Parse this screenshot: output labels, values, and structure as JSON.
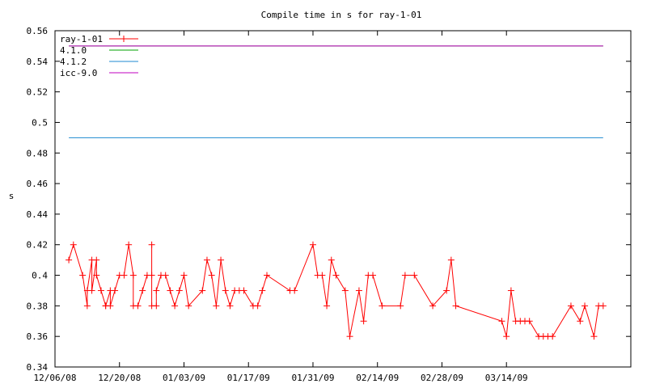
{
  "chart_data": {
    "type": "line",
    "title": "Compile time in s for ray-1-01",
    "xlabel": "",
    "ylabel": "s",
    "ylim": [
      0.34,
      0.56
    ],
    "xlim": [
      "2008-12-06",
      "2009-04-10"
    ],
    "yticks": [
      "0.34",
      "0.36",
      "0.38",
      "0.4",
      "0.42",
      "0.44",
      "0.46",
      "0.48",
      "0.5",
      "0.52",
      "0.54",
      "0.56"
    ],
    "xticks": [
      {
        "date": "2008-12-06",
        "label": "12/06/08"
      },
      {
        "date": "2008-12-20",
        "label": "12/20/08"
      },
      {
        "date": "2009-01-03",
        "label": "01/03/09"
      },
      {
        "date": "2009-01-17",
        "label": "01/17/09"
      },
      {
        "date": "2009-01-31",
        "label": "01/31/09"
      },
      {
        "date": "2009-02-14",
        "label": "02/14/09"
      },
      {
        "date": "2009-02-28",
        "label": "02/28/09"
      },
      {
        "date": "2009-03-14",
        "label": "03/14/09"
      }
    ],
    "grid": false,
    "legend_position": "top-left",
    "series": [
      {
        "name": "ray-1-01",
        "color": "#ff0000",
        "markers": true,
        "points": [
          [
            "2008-12-09",
            0.41
          ],
          [
            "2008-12-10",
            0.42
          ],
          [
            "2008-12-12",
            0.4
          ],
          [
            "2008-12-13",
            0.38
          ],
          [
            "2008-12-13",
            0.39
          ],
          [
            "2008-12-14",
            0.41
          ],
          [
            "2008-12-14",
            0.39
          ],
          [
            "2008-12-15",
            0.41
          ],
          [
            "2008-12-15",
            0.4
          ],
          [
            "2008-12-16",
            0.39
          ],
          [
            "2008-12-17",
            0.38
          ],
          [
            "2008-12-17",
            0.38
          ],
          [
            "2008-12-18",
            0.39
          ],
          [
            "2008-12-18",
            0.38
          ],
          [
            "2008-12-19",
            0.39
          ],
          [
            "2008-12-20",
            0.4
          ],
          [
            "2008-12-21",
            0.4
          ],
          [
            "2008-12-22",
            0.42
          ],
          [
            "2008-12-23",
            0.4
          ],
          [
            "2008-12-23",
            0.38
          ],
          [
            "2008-12-24",
            0.38
          ],
          [
            "2008-12-25",
            0.39
          ],
          [
            "2008-12-26",
            0.4
          ],
          [
            "2008-12-27",
            0.4
          ],
          [
            "2008-12-27",
            0.42
          ],
          [
            "2008-12-27",
            0.38
          ],
          [
            "2008-12-28",
            0.38
          ],
          [
            "2008-12-28",
            0.39
          ],
          [
            "2008-12-29",
            0.4
          ],
          [
            "2008-12-30",
            0.4
          ],
          [
            "2008-12-31",
            0.39
          ],
          [
            "2009-01-01",
            0.38
          ],
          [
            "2009-01-02",
            0.39
          ],
          [
            "2009-01-03",
            0.4
          ],
          [
            "2009-01-04",
            0.38
          ],
          [
            "2009-01-07",
            0.39
          ],
          [
            "2009-01-08",
            0.41
          ],
          [
            "2009-01-09",
            0.4
          ],
          [
            "2009-01-10",
            0.38
          ],
          [
            "2009-01-11",
            0.41
          ],
          [
            "2009-01-12",
            0.39
          ],
          [
            "2009-01-13",
            0.38
          ],
          [
            "2009-01-14",
            0.39
          ],
          [
            "2009-01-15",
            0.39
          ],
          [
            "2009-01-16",
            0.39
          ],
          [
            "2009-01-18",
            0.38
          ],
          [
            "2009-01-19",
            0.38
          ],
          [
            "2009-01-20",
            0.39
          ],
          [
            "2009-01-21",
            0.4
          ],
          [
            "2009-01-26",
            0.39
          ],
          [
            "2009-01-27",
            0.39
          ],
          [
            "2009-01-31",
            0.42
          ],
          [
            "2009-02-01",
            0.4
          ],
          [
            "2009-02-02",
            0.4
          ],
          [
            "2009-02-03",
            0.38
          ],
          [
            "2009-02-04",
            0.41
          ],
          [
            "2009-02-05",
            0.4
          ],
          [
            "2009-02-07",
            0.39
          ],
          [
            "2009-02-08",
            0.36
          ],
          [
            "2009-02-10",
            0.39
          ],
          [
            "2009-02-11",
            0.37
          ],
          [
            "2009-02-12",
            0.4
          ],
          [
            "2009-02-13",
            0.4
          ],
          [
            "2009-02-15",
            0.38
          ],
          [
            "2009-02-19",
            0.38
          ],
          [
            "2009-02-20",
            0.4
          ],
          [
            "2009-02-22",
            0.4
          ],
          [
            "2009-02-26",
            0.38
          ],
          [
            "2009-03-01",
            0.39
          ],
          [
            "2009-03-02",
            0.41
          ],
          [
            "2009-03-03",
            0.38
          ],
          [
            "2009-03-13",
            0.37
          ],
          [
            "2009-03-14",
            0.36
          ],
          [
            "2009-03-15",
            0.39
          ],
          [
            "2009-03-16",
            0.37
          ],
          [
            "2009-03-17",
            0.37
          ],
          [
            "2009-03-18",
            0.37
          ],
          [
            "2009-03-19",
            0.37
          ],
          [
            "2009-03-21",
            0.36
          ],
          [
            "2009-03-22",
            0.36
          ],
          [
            "2009-03-23",
            0.36
          ],
          [
            "2009-03-24",
            0.36
          ],
          [
            "2009-03-28",
            0.38
          ],
          [
            "2009-03-30",
            0.37
          ],
          [
            "2009-03-31",
            0.38
          ],
          [
            "2009-04-02",
            0.36
          ],
          [
            "2009-04-03",
            0.38
          ],
          [
            "2009-04-04",
            0.38
          ]
        ]
      },
      {
        "name": "4.1.0",
        "color": "#00a000",
        "markers": false,
        "points": [
          [
            "2008-12-09",
            0.55
          ],
          [
            "2009-04-04",
            0.55
          ]
        ]
      },
      {
        "name": "4.1.2",
        "color": "#1e8ad0",
        "markers": false,
        "points": [
          [
            "2008-12-09",
            0.49
          ],
          [
            "2009-04-04",
            0.49
          ]
        ]
      },
      {
        "name": "icc-9.0",
        "color": "#c000c0",
        "markers": false,
        "points": [
          [
            "2008-12-09",
            0.55
          ],
          [
            "2009-04-04",
            0.55
          ]
        ]
      }
    ]
  }
}
